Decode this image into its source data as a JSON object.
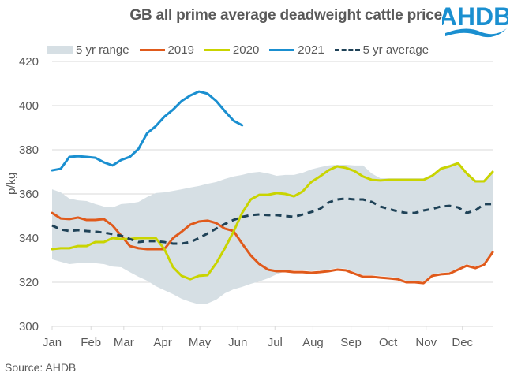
{
  "header": {
    "title": "GB all prime average deadweight cattle price",
    "logo_text": "AHDB"
  },
  "source": "Source: AHDB",
  "colors": {
    "range": "#d6dfe4",
    "y2019": "#e05a1b",
    "y2020": "#c9d400",
    "y2021": "#1a8fd0",
    "avg": "#1f4257",
    "grid": "#d9d9d9",
    "text": "#595959",
    "logo": "#1a8fd0"
  },
  "legend": [
    {
      "label": "5 yr range",
      "type": "area",
      "key": "range"
    },
    {
      "label": "2019",
      "type": "line",
      "key": "y2019"
    },
    {
      "label": "2020",
      "type": "line",
      "key": "y2020"
    },
    {
      "label": "2021",
      "type": "line",
      "key": "y2021"
    },
    {
      "label": "5 yr average",
      "type": "dashed",
      "key": "avg"
    }
  ],
  "chart_data": {
    "type": "line",
    "title": "GB all prime average deadweight cattle price",
    "xlabel": "",
    "ylabel": "p/kg",
    "ylim": [
      300,
      420
    ],
    "yticks": [
      300,
      320,
      340,
      360,
      380,
      400,
      420
    ],
    "x_unit": "week of year",
    "xlim": [
      1,
      52
    ],
    "xticks": [
      {
        "label": "Jan",
        "week": 1
      },
      {
        "label": "Feb",
        "week": 5.5
      },
      {
        "label": "Mar",
        "week": 9.3
      },
      {
        "label": "Apr",
        "week": 13.8
      },
      {
        "label": "May",
        "week": 18.1
      },
      {
        "label": "Jun",
        "week": 22.5
      },
      {
        "label": "Jul",
        "week": 26.8
      },
      {
        "label": "Aug",
        "week": 31.2
      },
      {
        "label": "Sep",
        "week": 35.6
      },
      {
        "label": "Oct",
        "week": 39.9
      },
      {
        "label": "Nov",
        "week": 44.3
      },
      {
        "label": "Dec",
        "week": 48.5
      }
    ],
    "grid": "horizontal",
    "legend_position": "top",
    "series": [
      {
        "name": "5 yr range",
        "key": "range",
        "type": "area",
        "upper": [
          362.1,
          360.7,
          357.9,
          357.1,
          356.8,
          355.4,
          354.3,
          353.9,
          355.4,
          355.7,
          356.4,
          358.6,
          360.4,
          360.7,
          361.4,
          362.1,
          362.9,
          363.6,
          364.6,
          365.4,
          366.8,
          367.9,
          368.6,
          369.6,
          370.0,
          369.3,
          368.2,
          368.6,
          368.6,
          369.6,
          371.1,
          372.1,
          372.9,
          373.2,
          373.2,
          372.9,
          372.9,
          369.3,
          367.1,
          367.1,
          367.1,
          367.1,
          367.1,
          367.1,
          368.9,
          372.1,
          373.2,
          374.6,
          370.0,
          366.4,
          366.4,
          370.7
        ],
        "lower": [
          330.4,
          329.3,
          328.2,
          328.6,
          328.9,
          328.6,
          328.2,
          327.1,
          326.8,
          324.6,
          322.5,
          320.7,
          318.2,
          316.4,
          314.6,
          312.5,
          311.1,
          310.0,
          310.4,
          312.1,
          315.0,
          316.8,
          317.9,
          319.3,
          320.4,
          321.8,
          323.6,
          325.0,
          325.4,
          325.4,
          325.0,
          325.4,
          325.7,
          326.4,
          326.1,
          324.6,
          323.2,
          323.2,
          322.9,
          322.5,
          322.1,
          320.7,
          320.7,
          320.4,
          323.6,
          324.3,
          324.6,
          326.4,
          328.2,
          327.1,
          328.6,
          334.3
        ]
      },
      {
        "name": "2019",
        "key": "y2019",
        "type": "line",
        "values": [
          351.4,
          348.9,
          348.6,
          349.3,
          348.2,
          348.2,
          348.6,
          345.7,
          341.1,
          336.4,
          335.4,
          335.0,
          335.0,
          335.0,
          340.0,
          342.9,
          346.1,
          347.5,
          347.9,
          346.8,
          344.3,
          343.2,
          337.5,
          332.1,
          328.2,
          325.7,
          325.0,
          325.0,
          324.6,
          324.6,
          324.3,
          324.6,
          325.0,
          325.7,
          325.4,
          323.9,
          322.5,
          322.5,
          322.1,
          321.8,
          321.4,
          320.0,
          320.0,
          319.6,
          322.9,
          323.6,
          323.9,
          325.7,
          327.5,
          326.4,
          327.9,
          333.6
        ]
      },
      {
        "name": "2020",
        "key": "y2020",
        "type": "line",
        "values": [
          335.0,
          335.4,
          335.4,
          336.4,
          336.4,
          338.2,
          338.2,
          340.0,
          339.6,
          339.6,
          340.0,
          340.0,
          340.0,
          335.0,
          326.8,
          322.9,
          321.4,
          322.9,
          323.2,
          328.6,
          335.4,
          342.9,
          351.4,
          357.5,
          359.6,
          359.6,
          360.4,
          360.0,
          358.9,
          361.1,
          365.4,
          367.9,
          370.7,
          372.5,
          371.8,
          370.4,
          367.9,
          366.4,
          366.1,
          366.4,
          366.4,
          366.4,
          366.4,
          366.4,
          368.2,
          371.4,
          372.5,
          373.9,
          369.3,
          365.7,
          365.7,
          370.0
        ]
      },
      {
        "name": "2021",
        "key": "y2021",
        "type": "line",
        "values": [
          370.7,
          371.4,
          376.8,
          377.1,
          376.8,
          376.4,
          374.3,
          372.9,
          375.4,
          376.8,
          380.4,
          387.5,
          390.7,
          395.0,
          398.2,
          402.1,
          404.6,
          406.4,
          405.4,
          402.1,
          397.5,
          393.2,
          391.1
        ]
      },
      {
        "name": "5 yr average",
        "key": "avg",
        "type": "dashed",
        "values": [
          345.7,
          343.9,
          343.2,
          343.6,
          343.2,
          342.9,
          342.5,
          341.8,
          341.1,
          339.6,
          338.2,
          338.6,
          338.6,
          338.2,
          337.5,
          337.5,
          338.2,
          340.0,
          342.1,
          344.3,
          346.4,
          348.2,
          349.6,
          350.4,
          350.7,
          350.4,
          350.4,
          350.0,
          349.6,
          350.7,
          351.8,
          353.2,
          356.1,
          357.5,
          357.9,
          357.5,
          357.5,
          356.4,
          354.3,
          353.2,
          352.1,
          351.4,
          351.4,
          352.5,
          353.2,
          354.3,
          354.6,
          353.9,
          351.4,
          352.5,
          355.4,
          355.4
        ]
      }
    ]
  }
}
